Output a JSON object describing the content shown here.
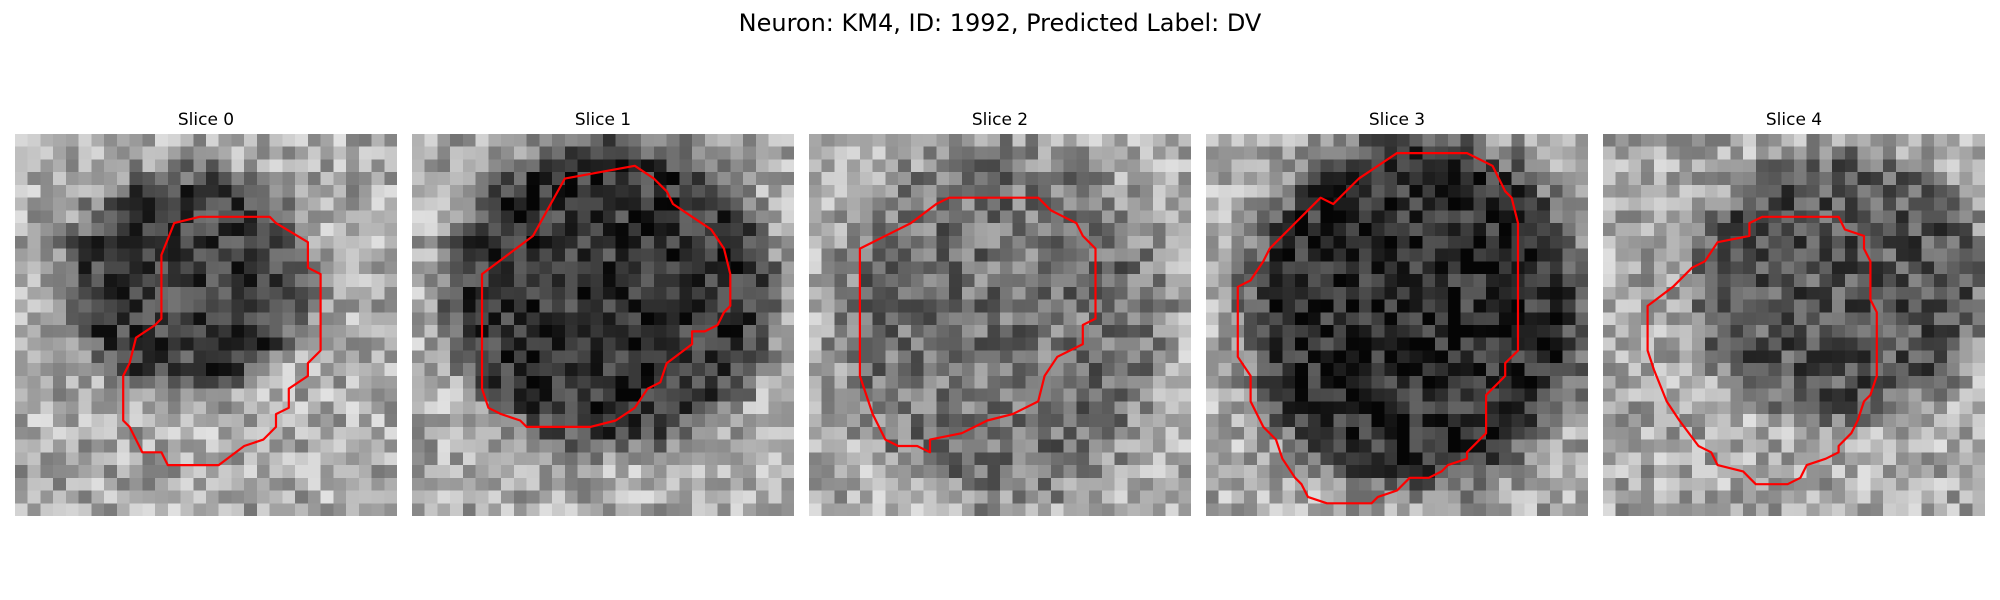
{
  "figure": {
    "title": "Neuron: KM4, ID: 1992, Predicted Label: DV"
  },
  "colors": {
    "contour": "#ff0000",
    "background": "#ffffff",
    "colormap": "gray"
  },
  "panels": [
    {
      "title": "Slice 0",
      "image_description": "grayscale noise patch with dark cell blob upper-left, red contour offset lower-right"
    },
    {
      "title": "Slice 1",
      "image_description": "grayscale noise patch with large dark round cell, red contour around left half"
    },
    {
      "title": "Slice 2",
      "image_description": "grayscale noise patch with faint dark cell, red octagonal contour"
    },
    {
      "title": "Slice 3",
      "image_description": "grayscale noise patch with large dark cell, red contour left and lower"
    },
    {
      "title": "Slice 4",
      "image_description": "grayscale noise patch with dark cell upper-right, red contour lower-left"
    }
  ]
}
